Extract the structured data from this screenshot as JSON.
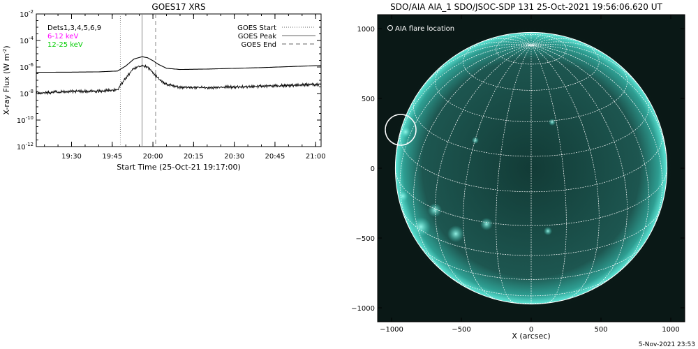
{
  "footer_text": "5-Nov-2021 23:53",
  "colors": {
    "axis": "#000000",
    "curve": "#000000",
    "magenta": "#ff00ff",
    "green": "#00ff00",
    "sun_disk": "#1d4f4a",
    "sun_edge": "#48e5d5",
    "grid": "#ffffff",
    "background_dark": "#0a1816"
  },
  "chart_data": [
    {
      "type": "line",
      "title": "GOES17 XRS",
      "xlabel": "Start Time (25-Oct-21 19:17:00)",
      "ylabel": "X-ray Flux (W m",
      "ylabel_sup": "-2",
      "ylabel_end": ")",
      "y_scale": "log",
      "xlim": [
        "19:17",
        "21:02"
      ],
      "ylim": [
        1e-12,
        0.01
      ],
      "x_ticks": [
        "19:30",
        "19:45",
        "20:00",
        "20:15",
        "20:30",
        "20:45",
        "21:00"
      ],
      "y_ticks": [
        {
          "value": 0.01,
          "base": "10",
          "exp": "-2"
        },
        {
          "value": 0.0001,
          "base": "10",
          "exp": "-4"
        },
        {
          "value": 1e-06,
          "base": "10",
          "exp": "-6"
        },
        {
          "value": 1e-08,
          "base": "10",
          "exp": "-8"
        },
        {
          "value": 1e-10,
          "base": "10",
          "exp": "-10"
        },
        {
          "value": 1e-12,
          "base": "10",
          "exp": "-12"
        }
      ],
      "legend_left": [
        {
          "label": "Dets1,3,4,5,6,9",
          "color": "#000000"
        },
        {
          "label": "6-12 keV",
          "color": "#ff00ff"
        },
        {
          "label": "12-25 keV",
          "color": "#00cc00"
        }
      ],
      "legend_right": [
        {
          "label": "GOES Start",
          "style": "dotted"
        },
        {
          "label": "GOES Peak",
          "style": "solid"
        },
        {
          "label": "GOES End",
          "style": "dashed"
        }
      ],
      "events": {
        "start": "19:48",
        "peak": "19:56",
        "end": "20:01"
      },
      "series": [
        {
          "key": "low_energy",
          "x": [
            "19:17",
            "19:30",
            "19:40",
            "19:47",
            "19:50",
            "19:53",
            "19:56",
            "19:58",
            "20:00",
            "20:02",
            "20:05",
            "20:10",
            "20:20",
            "20:40",
            "21:02"
          ],
          "values": [
            4e-07,
            4.1e-07,
            4.3e-07,
            5e-07,
            1.2e-06,
            4e-06,
            6e-06,
            5e-06,
            3e-06,
            1.6e-06,
            8e-07,
            6.5e-07,
            7e-07,
            9e-07,
            1.3e-06
          ]
        },
        {
          "key": "high_energy",
          "x": [
            "19:17",
            "19:30",
            "19:40",
            "19:47",
            "19:50",
            "19:53",
            "19:56",
            "19:58",
            "20:00",
            "20:02",
            "20:05",
            "20:10",
            "20:20",
            "20:40",
            "21:02"
          ],
          "values": [
            1.1e-08,
            1.4e-08,
            1.5e-08,
            2e-08,
            1.5e-07,
            8e-07,
            1.3e-06,
            1e-06,
            4e-07,
            1.3e-07,
            5e-08,
            3e-08,
            2.8e-08,
            3.5e-08,
            5e-08
          ]
        }
      ]
    },
    {
      "type": "image",
      "title": "SDO/AIA AIA_1 SDO/JSOC-SDP 131 25-Oct-2021 19:56:06.620 UT",
      "xlabel": "X (arcsec)",
      "xlim": [
        -1100,
        1100
      ],
      "ylim": [
        -1100,
        1100
      ],
      "x_ticks": [
        -1000,
        -500,
        0,
        500,
        1000
      ],
      "y_ticks": [
        -1000,
        -500,
        0,
        500,
        1000
      ],
      "x_tick_labels": [
        "−1000",
        "−500",
        "0",
        "500",
        "1000"
      ],
      "y_tick_labels": [
        "−1000",
        "−500",
        "0",
        "500",
        "1000"
      ],
      "legend": "AIA flare location",
      "flare_location": {
        "x": -935,
        "y": 275
      },
      "solar_radius": 973
    }
  ]
}
